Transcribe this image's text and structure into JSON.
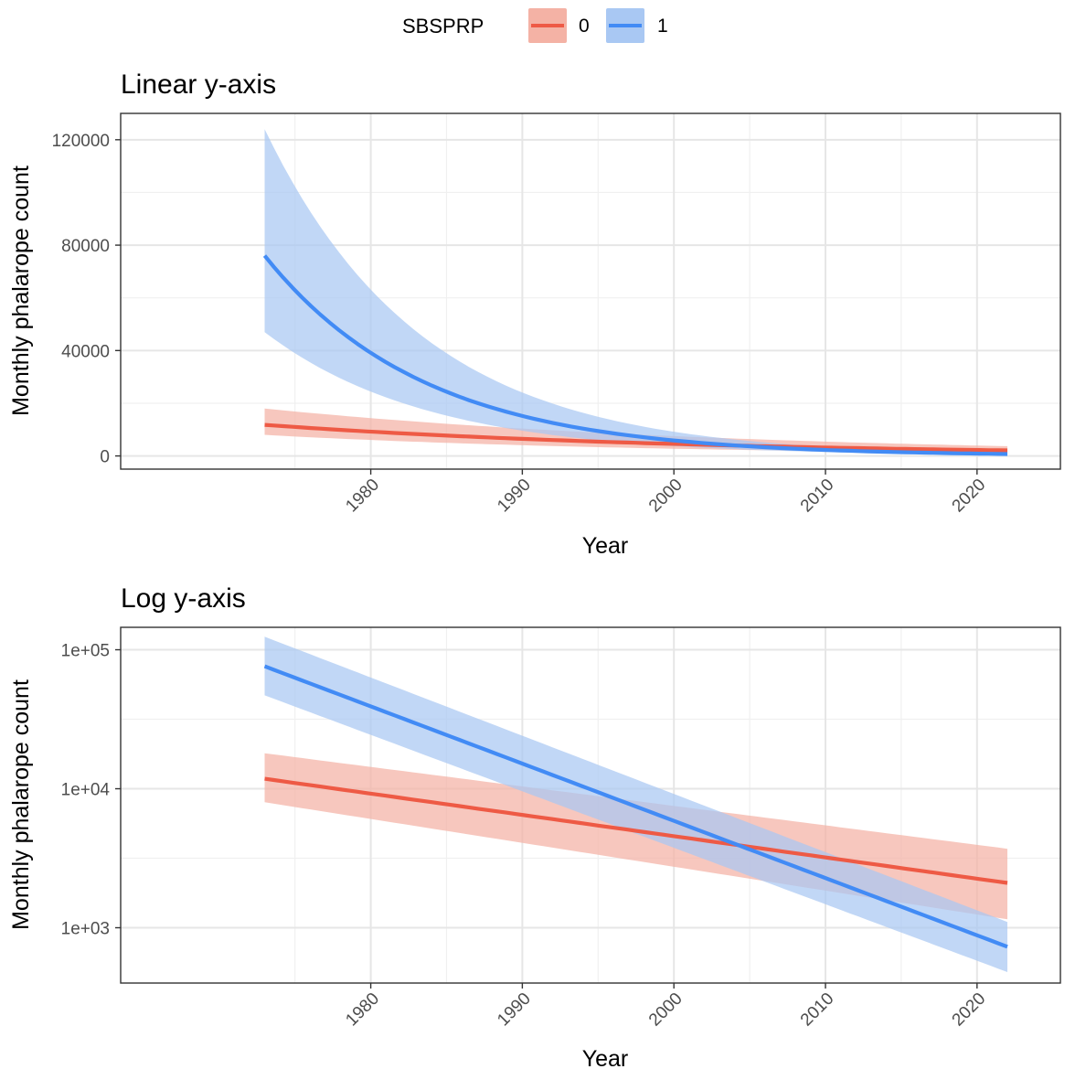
{
  "legend": {
    "title": "SBSPRP",
    "items": [
      {
        "label": "0",
        "line_color": "#ee5a45",
        "fill_color": "#f4b2a5"
      },
      {
        "label": "1",
        "line_color": "#428bf5",
        "fill_color": "#a9c8f3"
      }
    ]
  },
  "chart_data": [
    {
      "type": "line",
      "title": "Linear y-axis",
      "xlabel": "Year",
      "ylabel": "Monthly phalarope count",
      "xlim": [
        1963.5,
        2025.5
      ],
      "ylim": [
        -5000,
        130000
      ],
      "x_ticks": [
        1980,
        1990,
        2000,
        2010,
        2020
      ],
      "x_tick_labels": [
        "1980",
        "1990",
        "2000",
        "2010",
        "2020"
      ],
      "y_ticks": [
        0,
        40000,
        80000,
        120000
      ],
      "y_tick_labels": [
        "0",
        "40000",
        "80000",
        "120000"
      ],
      "y_minor_ticks": [
        20000,
        60000,
        100000
      ],
      "x_minor_ticks": [
        1975,
        1985,
        1995,
        2005,
        2015
      ],
      "y_scale": "linear",
      "grid": true,
      "legend_position": "top",
      "series": [
        {
          "name": "0",
          "x": [
            1973,
            2022
          ],
          "fit_endpoints": [
            11800,
            2100
          ],
          "ci_endpoints_low": [
            8000,
            1150
          ],
          "ci_endpoints_high": [
            18000,
            3700
          ]
        },
        {
          "name": "1",
          "x": [
            1973,
            2022
          ],
          "fit_endpoints": [
            76000,
            730
          ],
          "ci_endpoints_low": [
            47000,
            480
          ],
          "ci_endpoints_high": [
            124000,
            1100
          ]
        }
      ]
    },
    {
      "type": "line",
      "title": "Log y-axis",
      "xlabel": "Year",
      "ylabel": "Monthly phalarope count",
      "xlim": [
        1963.5,
        2025.5
      ],
      "ylim": [
        400,
        145000
      ],
      "x_ticks": [
        1980,
        1990,
        2000,
        2010,
        2020
      ],
      "x_tick_labels": [
        "1980",
        "1990",
        "2000",
        "2010",
        "2020"
      ],
      "y_ticks": [
        1000,
        10000,
        100000
      ],
      "y_tick_labels": [
        "1e+03",
        "1e+04",
        "1e+05"
      ],
      "y_minor_ticks": [
        3162.3,
        31622.8
      ],
      "x_minor_ticks": [
        1975,
        1985,
        1995,
        2005,
        2015
      ],
      "y_scale": "log10",
      "grid": true,
      "series": [
        {
          "name": "0",
          "x": [
            1973,
            2022
          ],
          "fit_endpoints": [
            11800,
            2100
          ],
          "ci_endpoints_low": [
            8000,
            1150
          ],
          "ci_endpoints_high": [
            18000,
            3700
          ]
        },
        {
          "name": "1",
          "x": [
            1973,
            2022
          ],
          "fit_endpoints": [
            76000,
            730
          ],
          "ci_endpoints_low": [
            47000,
            480
          ],
          "ci_endpoints_high": [
            124000,
            1100
          ]
        }
      ]
    }
  ]
}
